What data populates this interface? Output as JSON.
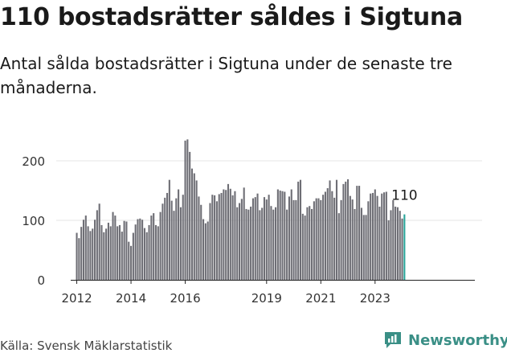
{
  "title": "110 bostadsrätter såldes i Sigtuna",
  "subtitle": "Antal sålda bostadsrätter i Sigtuna under de senaste tre månaderna.",
  "source": "Källa: Svensk Mäklarstatistik",
  "brand": "Newsworthy",
  "colors": {
    "bar": "#6e6e75",
    "highlight": "#2aa59a",
    "brand": "#3a8f86",
    "axis": "#222222",
    "grid": "#e6e6e6"
  },
  "chart_data": {
    "type": "bar",
    "title": "110 bostadsrätter såldes i Sigtuna",
    "xlabel": "",
    "ylabel": "",
    "ylim": [
      0,
      250
    ],
    "yticks": [
      0,
      100,
      200
    ],
    "xticks": [
      "2012",
      "2014",
      "2016",
      "2019",
      "2021",
      "2023"
    ],
    "grid": false,
    "start": "2012-01",
    "end": "2024-01",
    "annotation": "110",
    "values": [
      79,
      70,
      89,
      101,
      108,
      90,
      82,
      86,
      101,
      117,
      128,
      92,
      80,
      86,
      96,
      90,
      114,
      108,
      90,
      92,
      81,
      99,
      98,
      64,
      57,
      79,
      93,
      102,
      103,
      101,
      87,
      80,
      92,
      108,
      112,
      92,
      90,
      114,
      128,
      138,
      146,
      168,
      133,
      116,
      137,
      152,
      122,
      143,
      234,
      236,
      215,
      187,
      179,
      167,
      140,
      126,
      102,
      95,
      98,
      129,
      143,
      142,
      132,
      144,
      146,
      152,
      151,
      161,
      153,
      142,
      149,
      122,
      129,
      136,
      155,
      119,
      118,
      123,
      137,
      139,
      145,
      117,
      121,
      139,
      135,
      143,
      124,
      118,
      122,
      152,
      150,
      149,
      148,
      118,
      140,
      152,
      134,
      134,
      165,
      168,
      111,
      108,
      122,
      124,
      119,
      132,
      137,
      137,
      134,
      143,
      148,
      154,
      167,
      149,
      138,
      168,
      112,
      134,
      161,
      165,
      169,
      141,
      135,
      119,
      158,
      158,
      121,
      109,
      109,
      132,
      145,
      146,
      152,
      141,
      123,
      145,
      147,
      148,
      100,
      117,
      134,
      123,
      122,
      116,
      103,
      110
    ]
  }
}
